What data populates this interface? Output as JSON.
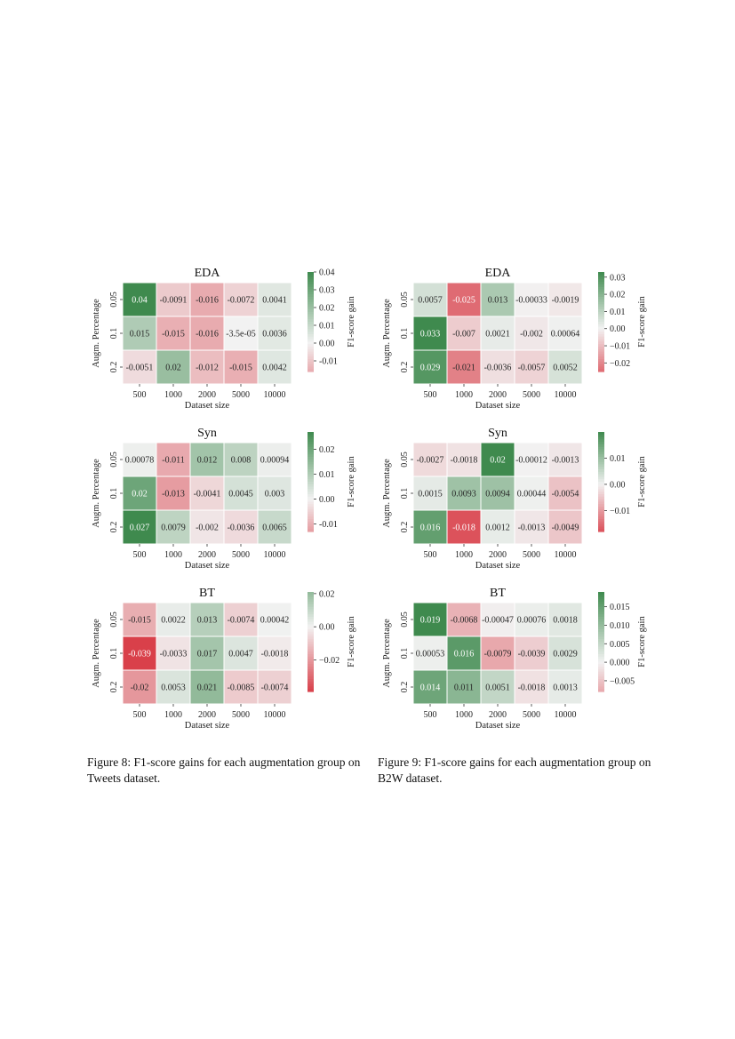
{
  "chart_data": [
    {
      "type": "heatmap",
      "figure": "tweets",
      "title": "EDA",
      "xlabel": "Dataset size",
      "ylabel": "Augm. Percentage",
      "colorbar_label": "F1-score gain",
      "x_categories": [
        "500",
        "1000",
        "2000",
        "5000",
        "10000"
      ],
      "y_categories": [
        "0.05",
        "0.1",
        "0.2"
      ],
      "labels": [
        [
          "0.04",
          "-0.0091",
          "-0.016",
          "-0.0072",
          "0.0041"
        ],
        [
          "0.015",
          "-0.015",
          "-0.016",
          "-3.5e-05",
          "0.0036"
        ],
        [
          "-0.0051",
          "0.02",
          "-0.012",
          "-0.015",
          "0.0042"
        ]
      ],
      "values": [
        [
          0.04,
          -0.0091,
          -0.016,
          -0.0072,
          0.0041
        ],
        [
          0.015,
          -0.015,
          -0.016,
          -3.5e-05,
          0.0036
        ],
        [
          -0.0051,
          0.02,
          -0.012,
          -0.015,
          0.0042
        ]
      ],
      "colorbar_range": [
        -0.016,
        0.04
      ],
      "colorbar_ticks": [
        0.04,
        0.03,
        0.02,
        0.01,
        0.0,
        -0.01
      ],
      "colorbar_tick_labels": [
        "0.04",
        "0.03",
        "0.02",
        "0.01",
        "0.00",
        "-0.01"
      ],
      "vmax_abs": 0.04
    },
    {
      "type": "heatmap",
      "figure": "tweets",
      "title": "Syn",
      "xlabel": "Dataset size",
      "ylabel": "Augm. Percentage",
      "colorbar_label": "F1-score gain",
      "x_categories": [
        "500",
        "1000",
        "2000",
        "5000",
        "10000"
      ],
      "y_categories": [
        "0.05",
        "0.1",
        "0.2"
      ],
      "labels": [
        [
          "0.00078",
          "-0.011",
          "0.012",
          "0.008",
          "0.00094"
        ],
        [
          "0.02",
          "-0.013",
          "-0.0041",
          "0.0045",
          "0.003"
        ],
        [
          "0.027",
          "0.0079",
          "-0.002",
          "-0.0036",
          "0.0065"
        ]
      ],
      "values": [
        [
          0.00078,
          -0.011,
          0.012,
          0.008,
          0.00094
        ],
        [
          0.02,
          -0.013,
          -0.0041,
          0.0045,
          0.003
        ],
        [
          0.027,
          0.0079,
          -0.002,
          -0.0036,
          0.0065
        ]
      ],
      "colorbar_range": [
        -0.013,
        0.027
      ],
      "colorbar_ticks": [
        0.02,
        0.01,
        0.0,
        -0.01
      ],
      "colorbar_tick_labels": [
        "0.02",
        "0.01",
        "0.00",
        "-0.01"
      ],
      "vmax_abs": 0.027
    },
    {
      "type": "heatmap",
      "figure": "tweets",
      "title": "BT",
      "xlabel": "Dataset size",
      "ylabel": "Augm. Percentage",
      "colorbar_label": "F1-score gain",
      "x_categories": [
        "500",
        "1000",
        "2000",
        "5000",
        "10000"
      ],
      "y_categories": [
        "0.05",
        "0.1",
        "0.2"
      ],
      "labels": [
        [
          "-0.015",
          "0.0022",
          "0.013",
          "-0.0074",
          "0.00042"
        ],
        [
          "-0.039",
          "-0.0033",
          "0.017",
          "0.0047",
          "-0.0018"
        ],
        [
          "-0.02",
          "0.0053",
          "0.021",
          "-0.0085",
          "-0.0074"
        ]
      ],
      "values": [
        [
          -0.015,
          0.0022,
          0.013,
          -0.0074,
          0.00042
        ],
        [
          -0.039,
          -0.0033,
          0.017,
          0.0047,
          -0.0018
        ],
        [
          -0.02,
          0.0053,
          0.021,
          -0.0085,
          -0.0074
        ]
      ],
      "colorbar_range": [
        -0.039,
        0.021
      ],
      "colorbar_ticks": [
        0.02,
        0.0,
        -0.02
      ],
      "colorbar_tick_labels": [
        "0.02",
        "0.00",
        "−0.02"
      ],
      "vmax_abs": 0.039
    },
    {
      "type": "heatmap",
      "figure": "b2w",
      "title": "EDA",
      "xlabel": "Dataset size",
      "ylabel": "Augm. Percentage",
      "colorbar_label": "F1-score gain",
      "x_categories": [
        "500",
        "1000",
        "2000",
        "5000",
        "10000"
      ],
      "y_categories": [
        "0.05",
        "0.1",
        "0.2"
      ],
      "labels": [
        [
          "0.0057",
          "-0.025",
          "0.013",
          "-0.00033",
          "-0.0019"
        ],
        [
          "0.033",
          "-0.007",
          "0.0021",
          "-0.002",
          "0.00064"
        ],
        [
          "0.029",
          "-0.021",
          "-0.0036",
          "-0.0057",
          "0.0052"
        ]
      ],
      "values": [
        [
          0.0057,
          -0.025,
          0.013,
          -0.00033,
          -0.0019
        ],
        [
          0.033,
          -0.007,
          0.0021,
          -0.002,
          0.00064
        ],
        [
          0.029,
          -0.021,
          -0.0036,
          -0.0057,
          0.0052
        ]
      ],
      "colorbar_range": [
        -0.025,
        0.033
      ],
      "colorbar_ticks": [
        0.03,
        0.02,
        0.01,
        0.0,
        -0.01,
        -0.02
      ],
      "colorbar_tick_labels": [
        "0.03",
        "0.02",
        "0.01",
        "0.00",
        "−0.01",
        "−0.02"
      ],
      "vmax_abs": 0.033
    },
    {
      "type": "heatmap",
      "figure": "b2w",
      "title": "Syn",
      "xlabel": "Dataset size",
      "ylabel": "Augm. Percentage",
      "colorbar_label": "F1-score gain",
      "x_categories": [
        "500",
        "1000",
        "2000",
        "5000",
        "10000"
      ],
      "y_categories": [
        "0.05",
        "0.1",
        "0.2"
      ],
      "labels": [
        [
          "-0.0027",
          "-0.0018",
          "0.02",
          "-0.00012",
          "-0.0013"
        ],
        [
          "0.0015",
          "0.0093",
          "0.0094",
          "0.00044",
          "-0.0054"
        ],
        [
          "0.016",
          "-0.018",
          "0.0012",
          "-0.0013",
          "-0.0049"
        ]
      ],
      "values": [
        [
          -0.0027,
          -0.0018,
          0.02,
          -0.00012,
          -0.0013
        ],
        [
          0.0015,
          0.0093,
          0.0094,
          0.00044,
          -0.0054
        ],
        [
          0.016,
          -0.018,
          0.0012,
          -0.0013,
          -0.0049
        ]
      ],
      "colorbar_range": [
        -0.018,
        0.02
      ],
      "colorbar_ticks": [
        0.01,
        0.0,
        -0.01
      ],
      "colorbar_tick_labels": [
        "0.01",
        "0.00",
        "−0.01"
      ],
      "vmax_abs": 0.02
    },
    {
      "type": "heatmap",
      "figure": "b2w",
      "title": "BT",
      "xlabel": "Dataset size",
      "ylabel": "Augm. Percentage",
      "colorbar_label": "F1-score gain",
      "x_categories": [
        "500",
        "1000",
        "2000",
        "5000",
        "10000"
      ],
      "y_categories": [
        "0.05",
        "0.1",
        "0.2"
      ],
      "labels": [
        [
          "0.019",
          "-0.0068",
          "-0.00047",
          "0.00076",
          "0.0018"
        ],
        [
          "0.00053",
          "0.016",
          "-0.0079",
          "-0.0039",
          "0.0029"
        ],
        [
          "0.014",
          "0.011",
          "0.0051",
          "-0.0018",
          "0.0013"
        ]
      ],
      "values": [
        [
          0.019,
          -0.0068,
          -0.00047,
          0.00076,
          0.0018
        ],
        [
          0.00053,
          0.016,
          -0.0079,
          -0.0039,
          0.0029
        ],
        [
          0.014,
          0.011,
          0.0051,
          -0.0018,
          0.0013
        ]
      ],
      "colorbar_range": [
        -0.0079,
        0.019
      ],
      "colorbar_ticks": [
        0.015,
        0.01,
        0.005,
        0.0,
        -0.005
      ],
      "colorbar_tick_labels": [
        "0.015",
        "0.010",
        "0.005",
        "0.000",
        "−0.005"
      ],
      "vmax_abs": 0.019
    }
  ],
  "colors": {
    "negative": "#d9404a",
    "neutral": "#f2f2f2",
    "positive": "#3f8a4e"
  },
  "captions": {
    "left": "Figure 8: F1-score gains for each augmentation group on Tweets dataset.",
    "right": "Figure 9: F1-score gains for each augmentation group on B2W dataset."
  }
}
